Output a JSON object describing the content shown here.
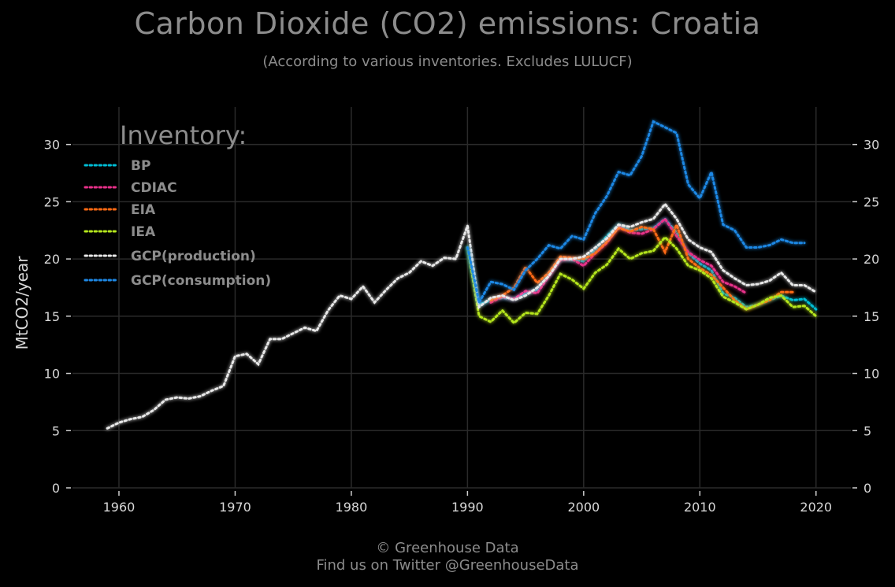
{
  "header": {
    "title": "Carbon Dioxide (CO2) emissions: Croatia",
    "subtitle": "(According to various inventories. Excludes LULUCF)"
  },
  "footer": {
    "line1": "© Greenhouse Data",
    "line2": "Find us on Twitter @GreenhouseData"
  },
  "colors": {
    "background": "#000000",
    "grid": "#2a2a2a",
    "BP": "#00bcd4",
    "CDIAC": "#e8308a",
    "EIA": "#ff6a13",
    "IEA": "#b5e61d",
    "GCP(production)": "#e8e8e8",
    "GCP(consumption)": "#1e88e5"
  },
  "chart_data": {
    "type": "line",
    "title": "Carbon Dioxide (CO2) emissions: Croatia",
    "subtitle": "(According to various inventories. Excludes LULUCF)",
    "xlabel": "",
    "ylabel": "MtCO2/year",
    "xlim": [
      1956,
      2023
    ],
    "ylim": [
      0,
      33
    ],
    "xticks": [
      1960,
      1970,
      1980,
      1990,
      2000,
      2010,
      2020
    ],
    "yticks": [
      0,
      5,
      10,
      15,
      20,
      25,
      30
    ],
    "grid": true,
    "secondary_y_axis": true,
    "legend_title": "Inventory:",
    "legend_position": "top-left",
    "series": [
      {
        "name": "BP",
        "color": "#00bcd4",
        "x": [
          1990,
          1991,
          1992,
          1993,
          1994,
          1995,
          1996,
          1997,
          1998,
          1999,
          2000,
          2001,
          2002,
          2003,
          2004,
          2005,
          2006,
          2007,
          2008,
          2009,
          2010,
          2011,
          2012,
          2013,
          2014,
          2015,
          2016,
          2017,
          2018,
          2019,
          2020
        ],
        "y": [
          21.0,
          16.0,
          16.4,
          16.6,
          16.5,
          17.0,
          17.3,
          18.7,
          20.0,
          19.9,
          19.8,
          20.8,
          22.0,
          23.0,
          22.5,
          22.6,
          22.7,
          23.5,
          22.3,
          20.5,
          19.6,
          19.0,
          17.0,
          16.6,
          15.8,
          16.0,
          16.4,
          16.8,
          16.4,
          16.5,
          15.6
        ]
      },
      {
        "name": "CDIAC",
        "color": "#e8308a",
        "x": [
          1992,
          1993,
          1994,
          1995,
          1996,
          1997,
          1998,
          1999,
          2000,
          2001,
          2002,
          2003,
          2004,
          2005,
          2006,
          2007,
          2008,
          2009,
          2010,
          2011,
          2012,
          2013,
          2014
        ],
        "y": [
          16.2,
          16.7,
          16.5,
          17.2,
          17.0,
          18.5,
          19.9,
          20.0,
          19.4,
          20.5,
          21.4,
          22.8,
          22.3,
          22.2,
          22.6,
          23.5,
          22.0,
          20.6,
          19.9,
          19.4,
          18.0,
          17.6,
          17.0
        ]
      },
      {
        "name": "EIA",
        "color": "#ff6a13",
        "x": [
          1992,
          1993,
          1994,
          1995,
          1996,
          1997,
          1998,
          1999,
          2000,
          2001,
          2002,
          2003,
          2004,
          2005,
          2006,
          2007,
          2008,
          2009,
          2010,
          2011,
          2012,
          2013,
          2014,
          2015,
          2016,
          2017,
          2018
        ],
        "y": [
          16.4,
          16.8,
          17.5,
          19.3,
          17.9,
          18.8,
          20.2,
          20.1,
          20.0,
          20.5,
          21.5,
          22.7,
          22.4,
          22.8,
          22.6,
          20.6,
          23.0,
          20.0,
          19.2,
          18.6,
          17.5,
          16.4,
          15.6,
          16.0,
          16.4,
          17.1,
          17.1
        ]
      },
      {
        "name": "IEA",
        "color": "#b5e61d",
        "x": [
          1990,
          1991,
          1992,
          1993,
          1994,
          1995,
          1996,
          1997,
          1998,
          1999,
          2000,
          2001,
          2002,
          2003,
          2004,
          2005,
          2006,
          2007,
          2008,
          2009,
          2010,
          2011,
          2012,
          2013,
          2014,
          2015,
          2016,
          2017,
          2018,
          2019,
          2020
        ],
        "y": [
          21.0,
          15.0,
          14.5,
          15.5,
          14.4,
          15.3,
          15.2,
          16.8,
          18.7,
          18.2,
          17.4,
          18.8,
          19.5,
          20.9,
          20.0,
          20.5,
          20.7,
          21.9,
          20.9,
          19.4,
          19.0,
          18.3,
          16.7,
          16.2,
          15.6,
          16.0,
          16.6,
          16.8,
          15.8,
          15.9,
          15.0
        ]
      },
      {
        "name": "GCP(production)",
        "color": "#e8e8e8",
        "x": [
          1959,
          1960,
          1961,
          1962,
          1963,
          1964,
          1965,
          1966,
          1967,
          1968,
          1969,
          1970,
          1971,
          1972,
          1973,
          1974,
          1975,
          1976,
          1977,
          1978,
          1979,
          1980,
          1981,
          1982,
          1983,
          1984,
          1985,
          1986,
          1987,
          1988,
          1989,
          1990,
          1991,
          1992,
          1993,
          1994,
          1995,
          1996,
          1997,
          1998,
          1999,
          2000,
          2001,
          2002,
          2003,
          2004,
          2005,
          2006,
          2007,
          2008,
          2009,
          2010,
          2011,
          2012,
          2013,
          2014,
          2015,
          2016,
          2017,
          2018,
          2019,
          2020
        ],
        "y": [
          5.2,
          5.7,
          6.0,
          6.2,
          6.8,
          7.7,
          7.9,
          7.8,
          8.0,
          8.5,
          8.9,
          11.5,
          11.7,
          10.8,
          13.0,
          13.0,
          13.5,
          14.0,
          13.7,
          15.5,
          16.8,
          16.5,
          17.6,
          16.2,
          17.3,
          18.3,
          18.8,
          19.8,
          19.4,
          20.1,
          20.0,
          22.9,
          15.8,
          16.6,
          16.8,
          16.4,
          16.8,
          17.5,
          18.5,
          20.0,
          20.0,
          20.2,
          21.0,
          21.8,
          23.0,
          22.8,
          23.2,
          23.5,
          24.8,
          23.5,
          21.7,
          21.0,
          20.6,
          19.0,
          18.3,
          17.7,
          17.8,
          18.1,
          18.8,
          17.7,
          17.7,
          17.1
        ]
      },
      {
        "name": "GCP(consumption)",
        "color": "#1e88e5",
        "x": [
          1990,
          1991,
          1992,
          1993,
          1994,
          1995,
          1996,
          1997,
          1998,
          1999,
          2000,
          2001,
          2002,
          2003,
          2004,
          2005,
          2006,
          2007,
          2008,
          2009,
          2010,
          2011,
          2012,
          2013,
          2014,
          2015,
          2016,
          2017,
          2018,
          2019
        ],
        "y": [
          21.0,
          16.2,
          18.0,
          17.8,
          17.3,
          19.0,
          20.0,
          21.2,
          20.9,
          22.0,
          21.7,
          24.0,
          25.5,
          27.6,
          27.3,
          29.0,
          32.0,
          31.5,
          31.0,
          26.5,
          25.3,
          27.6,
          23.0,
          22.5,
          21.0,
          21.0,
          21.2,
          21.7,
          21.4,
          21.4
        ]
      }
    ]
  }
}
